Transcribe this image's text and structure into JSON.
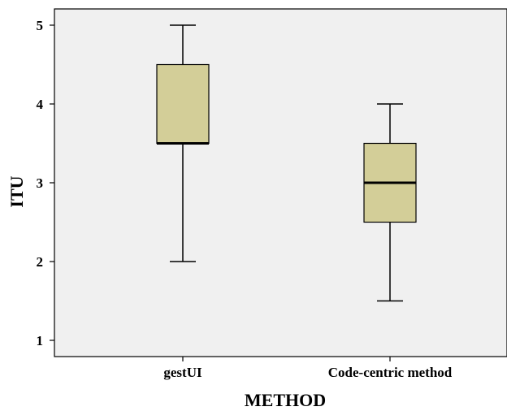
{
  "chart_data": {
    "type": "boxplot",
    "xlabel": "METHOD",
    "ylabel": "ITU",
    "ylim": [
      0.8,
      5.2
    ],
    "yticks": [
      "1",
      "2",
      "3",
      "4",
      "5"
    ],
    "categories": [
      "gestUI",
      "Code-centric method"
    ],
    "boxes": [
      {
        "category": "gestUI",
        "min": 2,
        "q1": 3.5,
        "median": 3.5,
        "q3": 4.5,
        "max": 5
      },
      {
        "category": "Code-centric method",
        "min": 1.5,
        "q1": 2.5,
        "median": 3,
        "q3": 3.5,
        "max": 4
      }
    ],
    "grid": false,
    "colors": {
      "plot_background": "#f0f0f0",
      "box_fill": "#d3ce98",
      "line": "#000000"
    }
  }
}
